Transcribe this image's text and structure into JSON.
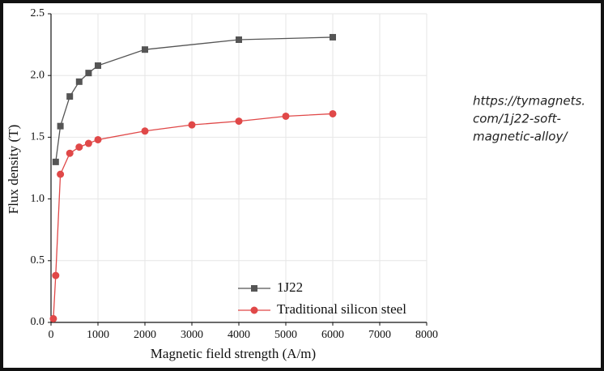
{
  "chart_data": {
    "type": "line",
    "x_label": "Magnetic field strength (A/m)",
    "y_label": "Flux density (T)",
    "xlim": [
      0,
      8000
    ],
    "xticks": [
      0,
      1000,
      2000,
      3000,
      4000,
      5000,
      6000,
      7000,
      8000
    ],
    "ylim": [
      0,
      2.5
    ],
    "yticks": [
      {
        "value": 0,
        "label": "0.0"
      },
      0.5,
      {
        "value": 1,
        "label": "1.0"
      },
      1.5,
      {
        "value": 2,
        "label": "2.0"
      },
      2.5
    ],
    "grid": true,
    "legend": "bottom",
    "series": [
      {
        "name": "1J22",
        "color": "#555555",
        "marker": "square",
        "x": [
          100,
          200,
          400,
          600,
          800,
          1000,
          2000,
          4000,
          6000
        ],
        "values": [
          1.3,
          1.59,
          1.83,
          1.95,
          2.02,
          2.08,
          2.21,
          2.29,
          2.31
        ]
      },
      {
        "name": "Traditional silicon steel",
        "color": "#e04848",
        "marker": "circle",
        "x": [
          50,
          100,
          200,
          400,
          600,
          800,
          1000,
          2000,
          3000,
          4000,
          5000,
          6000
        ],
        "values": [
          0.03,
          0.38,
          1.2,
          1.37,
          1.42,
          1.45,
          1.48,
          1.55,
          1.6,
          1.63,
          1.67,
          1.69
        ]
      }
    ],
    "annotation": [
      "https://tymagnets.",
      "com/1j22-soft-",
      "magnetic-alloy/"
    ]
  }
}
